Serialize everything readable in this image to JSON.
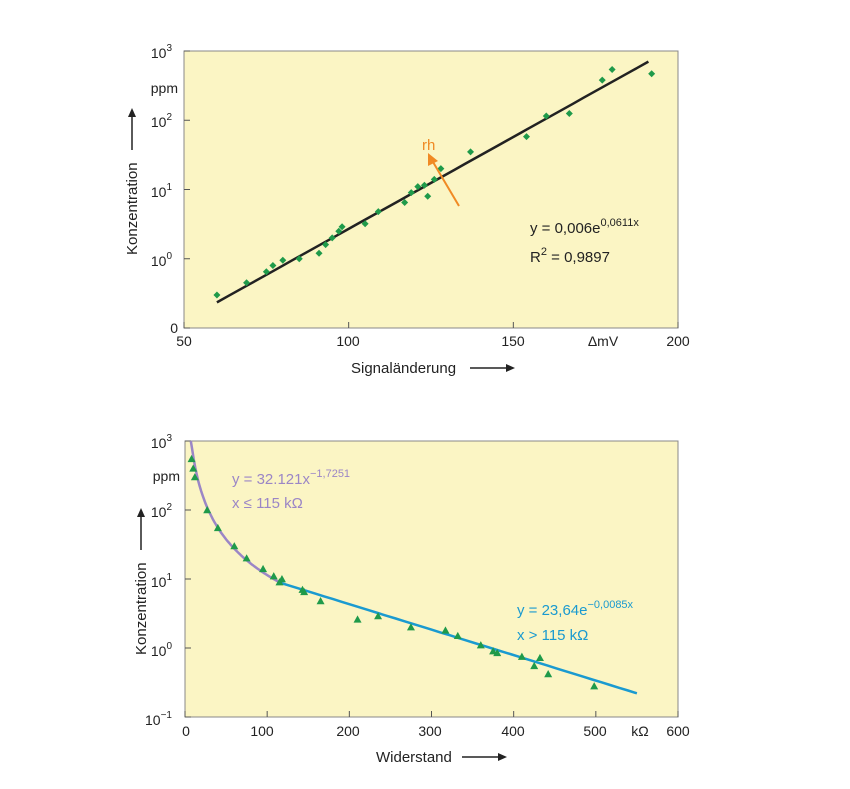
{
  "chart_data": [
    {
      "type": "scatter",
      "yscale": "log",
      "xlabel": "Signaländerung",
      "ylabel": "Konzentration",
      "xlim": [
        50,
        200
      ],
      "ylim_log10": [
        -1,
        3
      ],
      "x_ticks": [
        "50",
        "100",
        "150",
        "200"
      ],
      "x_unit": "ΔmV",
      "y_ticks": [
        {
          "base": "0",
          "exp": ""
        },
        {
          "base": "10",
          "exp": "0"
        },
        {
          "base": "10",
          "exp": "1"
        },
        {
          "base": "10",
          "exp": "2"
        },
        {
          "base": "10",
          "exp": "3"
        }
      ],
      "y_unit": "ppm",
      "points": [
        [
          60,
          0.3
        ],
        [
          69,
          0.45
        ],
        [
          75,
          0.65
        ],
        [
          77,
          0.8
        ],
        [
          80,
          0.95
        ],
        [
          85,
          1.0
        ],
        [
          91,
          1.2
        ],
        [
          93,
          1.6
        ],
        [
          95,
          2.0
        ],
        [
          97,
          2.5
        ],
        [
          98,
          2.9
        ],
        [
          105,
          3.2
        ],
        [
          109,
          4.8
        ],
        [
          117,
          6.5
        ],
        [
          119,
          9.0
        ],
        [
          121,
          11.0
        ],
        [
          123,
          11.5
        ],
        [
          124,
          8.0
        ],
        [
          126,
          14.0
        ],
        [
          128,
          20.0
        ],
        [
          137,
          35.0
        ],
        [
          154,
          58.0
        ],
        [
          160,
          115.0
        ],
        [
          167,
          125.0
        ],
        [
          177,
          380.0
        ],
        [
          180,
          540.0
        ],
        [
          192,
          470.0
        ]
      ],
      "fit": {
        "a": 0.006,
        "b": 0.0611,
        "x_range": [
          60,
          191
        ]
      },
      "equation": {
        "line1_base": "y = 0,006e",
        "line1_exp": "0,0611x",
        "line2_base": "R",
        "line2_exp": "2",
        "line2_rest": " = 0,9897"
      },
      "annotation": "rh",
      "colors": {
        "points": "#1f9a4a",
        "fit": "#222222",
        "arrow": "#f08a24",
        "background": "#fbf5c4"
      }
    },
    {
      "type": "scatter",
      "yscale": "log",
      "xlabel": "Widerstand",
      "ylabel": "Konzentration",
      "xlim": [
        0,
        600
      ],
      "ylim_log10": [
        -1,
        3
      ],
      "x_ticks": [
        "0",
        "100",
        "200",
        "300",
        "400",
        "500",
        "600"
      ],
      "x_unit": "kΩ",
      "y_ticks": [
        {
          "base": "10",
          "exp": "−1"
        },
        {
          "base": "10",
          "exp": "0"
        },
        {
          "base": "10",
          "exp": "1"
        },
        {
          "base": "10",
          "exp": "2"
        },
        {
          "base": "10",
          "exp": "3"
        }
      ],
      "y_unit": "ppm",
      "points": [
        [
          8,
          550
        ],
        [
          10,
          400
        ],
        [
          12,
          300
        ],
        [
          27,
          100
        ],
        [
          40,
          55
        ],
        [
          60,
          30
        ],
        [
          75,
          20
        ],
        [
          95,
          14
        ],
        [
          108,
          11
        ],
        [
          115,
          9
        ],
        [
          118,
          10
        ],
        [
          143,
          7
        ],
        [
          145,
          6.5
        ],
        [
          165,
          4.8
        ],
        [
          210,
          2.6
        ],
        [
          235,
          2.9
        ],
        [
          275,
          2.0
        ],
        [
          317,
          1.8
        ],
        [
          332,
          1.5
        ],
        [
          360,
          1.1
        ],
        [
          375,
          0.9
        ],
        [
          380,
          0.85
        ],
        [
          410,
          0.75
        ],
        [
          425,
          0.55
        ],
        [
          432,
          0.72
        ],
        [
          442,
          0.42
        ],
        [
          498,
          0.28
        ]
      ],
      "fit_power": {
        "a": 32121,
        "b": -1.7251,
        "x_range": [
          7,
          115
        ]
      },
      "fit_exp": {
        "a": 23.64,
        "b": -0.0085,
        "x_range": [
          115,
          550
        ]
      },
      "equation_power": {
        "line1_base": "y = 32.121x",
        "line1_exp": "−1,7251",
        "line2": "x ≤ 115 kΩ"
      },
      "equation_exp": {
        "line1_base": "y = 23,64e",
        "line1_exp": "−0,0085x",
        "line2": "x > 115 kΩ"
      },
      "colors": {
        "points": "#1f9a4a",
        "power_fit": "#9b86c6",
        "exp_fit": "#1a9ad0",
        "background": "#fbf5c4"
      }
    }
  ]
}
